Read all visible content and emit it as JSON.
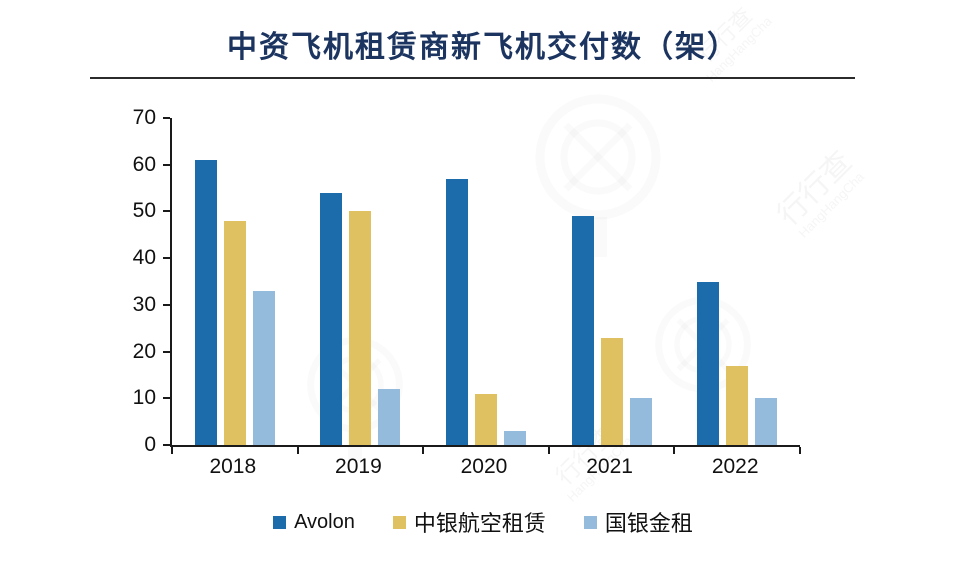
{
  "title": "中资飞机租赁商新飞机交付数（架）",
  "watermark": {
    "brand": "行行查",
    "brand_latin": "HangHangCha"
  },
  "chart_data": {
    "type": "bar",
    "title": "中资飞机租赁商新飞机交付数（架）",
    "categories": [
      "2018",
      "2019",
      "2020",
      "2021",
      "2022"
    ],
    "series": [
      {
        "name": "Avolon",
        "color": "#1C6BAB",
        "values": [
          61,
          54,
          57,
          49,
          35
        ]
      },
      {
        "name": "中银航空租赁",
        "color": "#E0C161",
        "values": [
          48,
          50,
          11,
          23,
          17
        ]
      },
      {
        "name": "国银金租",
        "color": "#94BBDC",
        "values": [
          33,
          12,
          3,
          10,
          10
        ]
      }
    ],
    "xlabel": "",
    "ylabel": "",
    "ylim": [
      0,
      70
    ],
    "ytick_step": 10,
    "grid": false,
    "legend_position": "bottom"
  }
}
